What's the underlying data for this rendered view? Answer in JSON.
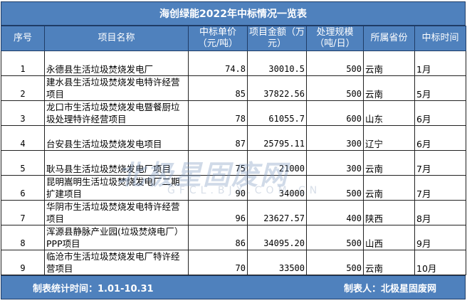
{
  "title": "海创绿能2022年中标情况一览表",
  "headers": [
    "序号",
    "项目名称",
    "中标单价（元/吨）",
    "项目金额（万元）",
    "处理规模（吨/日）",
    "所属省份",
    "中标时间"
  ],
  "rows": [
    {
      "no": "1",
      "name": "永德县生活垃圾焚烧发电厂",
      "price": "74.8",
      "amount": "30010.5",
      "scale": "500",
      "province": "云南",
      "time": "1月"
    },
    {
      "no": "2",
      "name": "建水县生活垃圾焚烧发电特许经营项目",
      "price": "85",
      "amount": "37822.56",
      "scale": "500",
      "province": "云南",
      "time": "5月"
    },
    {
      "no": "3",
      "name": "龙口市生活垃圾焚烧发电暨餐厨垃圾处理特许经营项目",
      "price": "78",
      "amount": "61055.7",
      "scale": "600",
      "province": "山东",
      "time": "6月"
    },
    {
      "no": "4",
      "name": "台安县生活垃圾焚烧发电项目",
      "price": "87",
      "amount": "25795.11",
      "scale": "300",
      "province": "辽宁",
      "time": "6月"
    },
    {
      "no": "5",
      "name": "耿马县生活垃圾焚烧发电厂项目",
      "price": "75",
      "amount": "21000",
      "scale": "300",
      "province": "云南",
      "time": "7月"
    },
    {
      "no": "6",
      "name": "昆明嵩明生活垃圾焚烧发电厂二期扩建项目",
      "price": "90",
      "amount": "34000",
      "scale": "500",
      "province": "云南",
      "time": "7月"
    },
    {
      "no": "7",
      "name": "华阴市生活垃圾焚烧发电特许经营项目",
      "price": "96",
      "amount": "23627.57",
      "scale": "400",
      "province": "陕西",
      "time": "8月"
    },
    {
      "no": "8",
      "name": "浑源县静脉产业园(垃圾焚烧电厂）PPP项目",
      "price": "86",
      "amount": "34095.20",
      "scale": "500",
      "province": "山西",
      "time": "9月"
    },
    {
      "no": "9",
      "name": "临沧市生活垃圾焚烧发电厂特许经营项目",
      "price": "70",
      "amount": "33500",
      "scale": "500",
      "province": "云南",
      "time": "10月"
    }
  ],
  "footer": {
    "period": "制表统计时间：1.01-10.31",
    "author": "制表人：北极星固废网"
  },
  "watermark": {
    "text": "北极星固废网",
    "url": "GFCL.BJX.COM.CN"
  },
  "colors": {
    "header_bg": "#4f81bd"
  }
}
